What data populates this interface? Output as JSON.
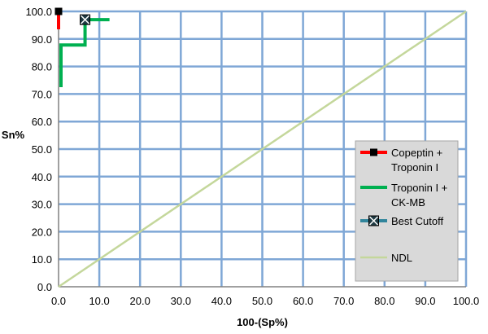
{
  "chart_data": {
    "type": "line",
    "xlabel": "100-(Sp%)",
    "ylabel": "Sn%",
    "xlim": [
      0,
      100
    ],
    "ylim": [
      0,
      100
    ],
    "x_ticks": [
      "0.0",
      "10.0",
      "20.0",
      "30.0",
      "40.0",
      "50.0",
      "60.0",
      "70.0",
      "80.0",
      "90.0",
      "100.0"
    ],
    "y_ticks": [
      "0.0",
      "10.0",
      "20.0",
      "30.0",
      "40.0",
      "50.0",
      "60.0",
      "70.0",
      "80.0",
      "90.0",
      "100.0"
    ],
    "grid": true,
    "legend_position": "right",
    "series": [
      {
        "name": "Copeptin + Troponin I",
        "legend_lines": [
          "Copeptin +",
          "Troponin I"
        ],
        "color": "#ff0000",
        "marker": "square",
        "x": [
          0,
          0,
          0
        ],
        "y": [
          93.5,
          97,
          100
        ]
      },
      {
        "name": "Troponin I + CK-MB",
        "legend_lines": [
          "Troponin I +",
          "CK-MB"
        ],
        "color": "#00b050",
        "marker": "none",
        "x": [
          0.6,
          0.6,
          6.5,
          6.5,
          12.5
        ],
        "y": [
          72.5,
          87.8,
          87.8,
          97,
          97
        ]
      },
      {
        "name": "Best Cutoff",
        "legend_lines": [
          "Best Cutoff"
        ],
        "color": "#31859c",
        "marker": "x-square",
        "x": [
          6.5
        ],
        "y": [
          97
        ]
      },
      {
        "name": "NDL",
        "legend_lines": [
          "NDL"
        ],
        "color": "#c4d79b",
        "marker": "none",
        "x": [
          0,
          100
        ],
        "y": [
          0,
          100
        ]
      }
    ],
    "colors": {
      "grid": "#7fa7d6",
      "axis": "#808080",
      "legend_bg": "#d9d9d9",
      "legend_border": "#a6a6a6",
      "marker_fill_dark": "#000000",
      "best_cutoff_fill": "#1f3b44"
    }
  }
}
